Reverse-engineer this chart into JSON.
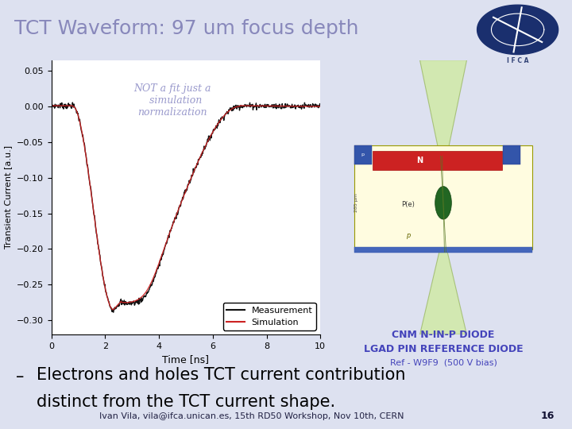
{
  "title": "TCT Waveform: 97 um focus depth",
  "title_color": "#8888bb",
  "title_fontsize": 18,
  "slide_bg": "#dde1f0",
  "white_bg": "#ffffff",
  "plot_bg_color": "#ffffff",
  "xlabel": "Time [ns]",
  "ylabel": "Transient Current [a.u.]",
  "xlim": [
    0,
    10
  ],
  "ylim": [
    -0.32,
    0.065
  ],
  "yticks": [
    0.05,
    0.0,
    -0.05,
    -0.1,
    -0.15,
    -0.2,
    -0.25,
    -0.3
  ],
  "xticks": [
    0,
    2,
    4,
    6,
    8,
    10
  ],
  "annotation_text": "NOT a fit just a\n  simulation\nnormalization",
  "annotation_color": "#9999cc",
  "annotation_fontsize": 9,
  "legend_labels": [
    "Measurement",
    "Simulation"
  ],
  "meas_color": "#111111",
  "sim_color": "#cc2222",
  "cnm_text_line1": "CNM N-IN-P DIODE",
  "cnm_text_line2": "LGAD PIN REFERENCE DIODE",
  "cnm_text_line3": "Ref - W9F9  (500 V bias)",
  "cnm_color": "#4444bb",
  "bullet_fontsize": 15,
  "footer_text": "Ivan Vila, vila@ifca.unican.es, 15th RD50 Workshop, Nov 10th, CERN",
  "footer_page": "16",
  "footer_fontsize": 8,
  "footer_bg": "#c8ccdd"
}
